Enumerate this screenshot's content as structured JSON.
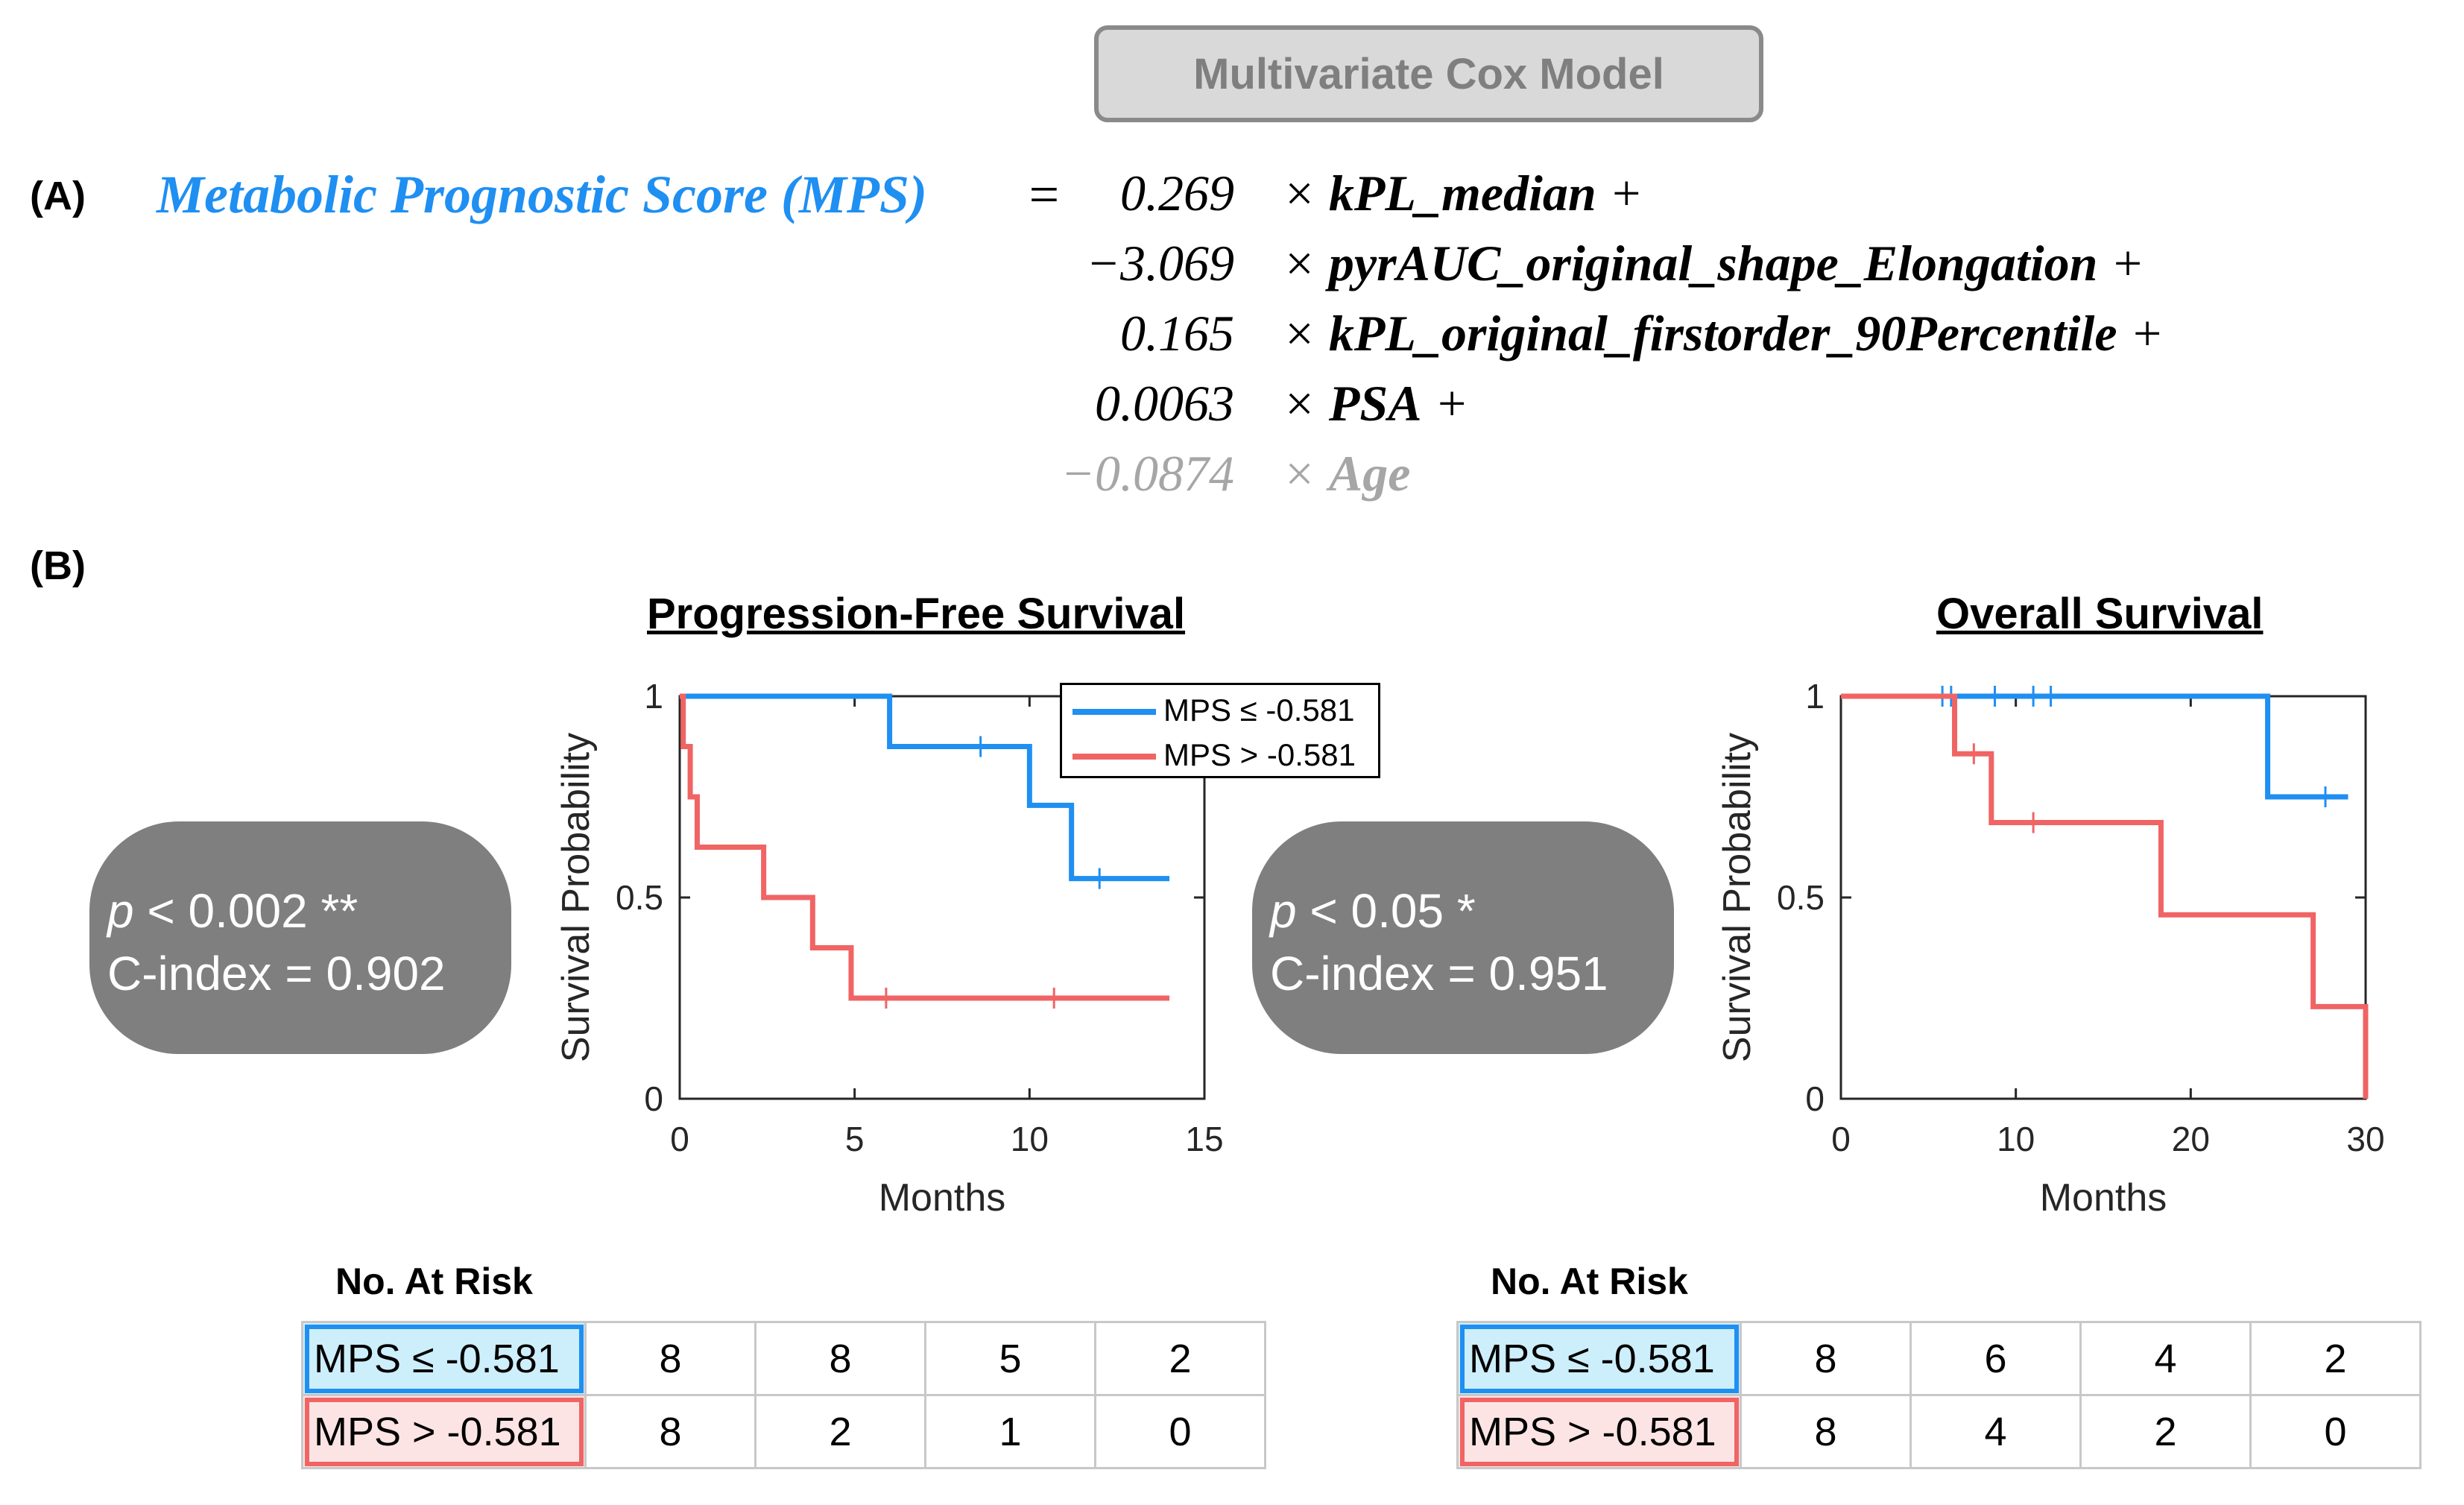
{
  "header": {
    "title": "Multivariate Cox Model"
  },
  "panels": {
    "a": "(A)",
    "b": "(B)"
  },
  "equation": {
    "lhs": "Metabolic Prognostic Score (MPS)",
    "equals": "=",
    "terms": [
      {
        "coef": "0.269",
        "op": "×",
        "name": "kPL_median",
        "plus": "+"
      },
      {
        "coef": "−3.069",
        "op": "×",
        "name": "pyrAUC_original_shape_Elongation",
        "plus": "+"
      },
      {
        "coef": "0.165",
        "op": "×",
        "name": "kPL_original_firstorder_90Percentile",
        "plus": "+"
      },
      {
        "coef": "0.0063",
        "op": "×",
        "name": "PSA",
        "plus": "+"
      },
      {
        "coef": "−0.0874",
        "op": "×",
        "name": "Age",
        "plus": ""
      }
    ]
  },
  "stats": {
    "pfs": {
      "p_label": "p",
      "p_text": " < 0.002 **",
      "c_text": "C-index  = 0.902"
    },
    "os": {
      "p_label": "p",
      "p_text": " < 0.05 *",
      "c_text": "C-index  = 0.951"
    }
  },
  "colors": {
    "low": "#1f8ff2",
    "high": "#f06464"
  },
  "chart_data": [
    {
      "type": "line",
      "title": "Progression-Free Survival",
      "xlabel": "Months",
      "ylabel": "Survival Probability",
      "xlim": [
        0,
        15
      ],
      "ylim": [
        0,
        1
      ],
      "xticks": [
        0,
        5,
        10,
        15
      ],
      "yticks": [
        0,
        0.5,
        1
      ],
      "ytick_labels": [
        "0",
        "0.5",
        "1"
      ],
      "legend": [
        "MPS ≤  -0.581",
        "MPS > -0.581"
      ],
      "series": [
        {
          "name": "MPS ≤  -0.581",
          "steps": [
            [
              0,
              1
            ],
            [
              6.0,
              0.875
            ],
            [
              10.0,
              0.729
            ],
            [
              11.2,
              0.547
            ],
            [
              14.0,
              0.547
            ]
          ],
          "censor": [
            [
              8.6,
              0.875
            ],
            [
              12.0,
              0.547
            ]
          ]
        },
        {
          "name": "MPS > -0.581",
          "steps": [
            [
              0,
              1
            ],
            [
              0.1,
              0.875
            ],
            [
              0.3,
              0.75
            ],
            [
              0.5,
              0.625
            ],
            [
              2.4,
              0.5
            ],
            [
              3.8,
              0.375
            ],
            [
              4.9,
              0.25
            ],
            [
              14.0,
              0.25
            ]
          ],
          "censor": [
            [
              5.9,
              0.25
            ],
            [
              10.7,
              0.25
            ]
          ]
        }
      ],
      "risk": {
        "title": "No. At Risk",
        "rows": [
          {
            "label": "MPS ≤ -0.581",
            "values": [
              "8",
              "8",
              "5",
              "2"
            ]
          },
          {
            "label": "MPS > -0.581",
            "values": [
              "8",
              "2",
              "1",
              "0"
            ]
          }
        ]
      }
    },
    {
      "type": "line",
      "title": "Overall Survival",
      "xlabel": "Months",
      "ylabel": "Survival Probability",
      "xlim": [
        0,
        30
      ],
      "ylim": [
        0,
        1
      ],
      "xticks": [
        0,
        10,
        20,
        30
      ],
      "yticks": [
        0,
        0.5,
        1
      ],
      "ytick_labels": [
        "0",
        "0.5",
        "1"
      ],
      "series": [
        {
          "name": "MPS ≤ -0.581",
          "steps": [
            [
              0,
              1
            ],
            [
              24.4,
              0.75
            ],
            [
              29.0,
              0.75
            ]
          ],
          "censor": [
            [
              5.8,
              1
            ],
            [
              6.3,
              1
            ],
            [
              8.8,
              1
            ],
            [
              11.0,
              1
            ],
            [
              12.0,
              1
            ],
            [
              27.7,
              0.75
            ]
          ]
        },
        {
          "name": "MPS > -0.581",
          "steps": [
            [
              0,
              1
            ],
            [
              6.5,
              0.857
            ],
            [
              8.6,
              0.686
            ],
            [
              18.3,
              0.457
            ],
            [
              27.0,
              0.229
            ],
            [
              30.0,
              0.0
            ]
          ],
          "censor": [
            [
              7.6,
              0.857
            ],
            [
              11.0,
              0.686
            ]
          ]
        }
      ],
      "risk": {
        "title": "No. At Risk",
        "rows": [
          {
            "label": "MPS ≤ -0.581",
            "values": [
              "8",
              "6",
              "4",
              "2"
            ]
          },
          {
            "label": "MPS > -0.581",
            "values": [
              "8",
              "4",
              "2",
              "0"
            ]
          }
        ]
      }
    }
  ]
}
